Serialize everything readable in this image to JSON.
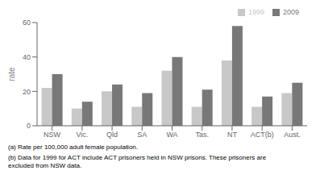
{
  "chart_data": {
    "type": "bar",
    "categories": [
      "NSW",
      "Vic.",
      "Qld",
      "SA",
      "WA",
      "Tas.",
      "NT",
      "ACT(b)",
      "Aust."
    ],
    "series": [
      {
        "name": "1999",
        "color": "#c8c8c8",
        "values": [
          22,
          10,
          20,
          11,
          32,
          11,
          38,
          11,
          19
        ]
      },
      {
        "name": "2009",
        "color": "#787878",
        "values": [
          30,
          14,
          24,
          19,
          40,
          21,
          58,
          17,
          25
        ]
      }
    ],
    "ylabel": "rate",
    "ylim": [
      0,
      60
    ],
    "yticks": [
      0,
      20,
      40,
      60
    ],
    "legend": "upper right",
    "grid": false,
    "annotations": [
      "(a) Rate per 100,000 adult female population.",
      "(b) Data for 1999 for ACT include ACT prisoners held in NSW prisons. These prisoners are\nexcluded from NSW data."
    ]
  }
}
